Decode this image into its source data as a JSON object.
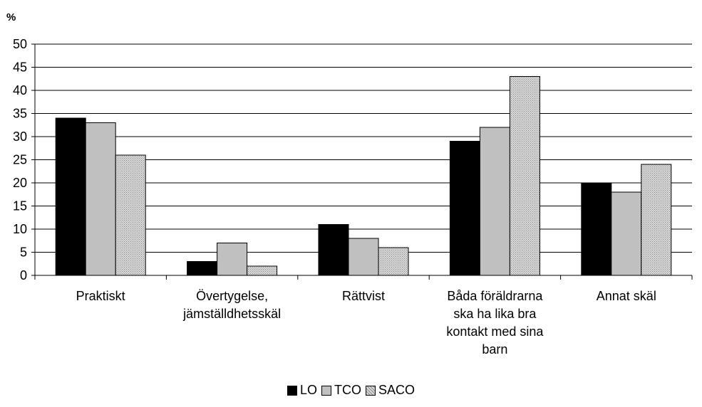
{
  "chart_data": {
    "type": "bar",
    "unit_label": "%",
    "categories": [
      "Praktiskt",
      "Övertygelse,\njämställdhetsskäl",
      "Rättvist",
      "Båda föräldrarna\nska ha lika bra\nkontakt med sina\nbarn",
      "Annat skäl"
    ],
    "series": [
      {
        "name": "LO",
        "values": [
          34,
          3,
          11,
          29,
          20
        ],
        "color": "#000000"
      },
      {
        "name": "TCO",
        "values": [
          33,
          7,
          8,
          32,
          18
        ],
        "color": "#c0c0c0"
      },
      {
        "name": "SACO",
        "values": [
          26,
          2,
          6,
          43,
          24
        ],
        "color": "#d0d0d0",
        "pattern": "dotted"
      }
    ],
    "ylim": [
      0,
      50
    ],
    "yticks": [
      0,
      5,
      10,
      15,
      20,
      25,
      30,
      35,
      40,
      45,
      50
    ],
    "grid": true,
    "legend_position": "bottom-center"
  }
}
